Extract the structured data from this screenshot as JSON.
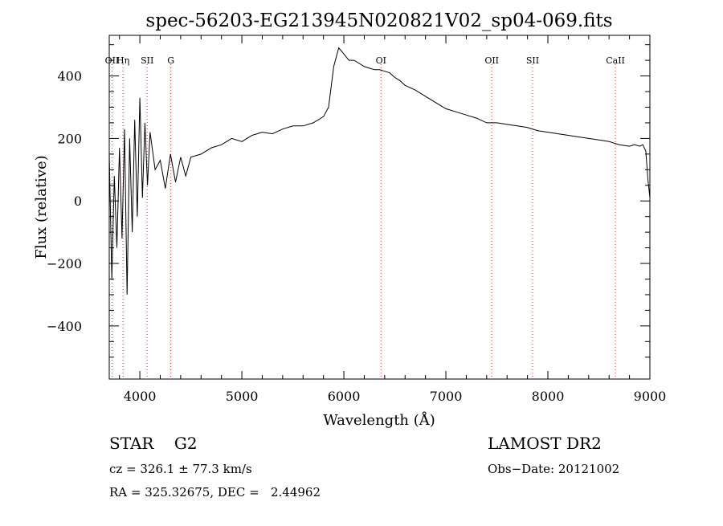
{
  "chart_data": {
    "type": "line",
    "title": "spec-56203-EG213945N020821V02_sp04-069.fits",
    "xlabel": "Wavelength (Å)",
    "ylabel": "Flux (relative)",
    "xlim": [
      3700,
      9000
    ],
    "ylim": [
      -570,
      530
    ],
    "xticks": [
      4000,
      5000,
      6000,
      7000,
      8000,
      9000
    ],
    "xtick_labels": [
      "4000",
      "5000",
      "6000",
      "7000",
      "8000",
      "9000"
    ],
    "yticks": [
      -400,
      -200,
      0,
      200,
      400
    ],
    "ytick_labels": [
      "−400",
      "−200",
      "0",
      "200",
      "400"
    ],
    "grid": false,
    "line_color": "#000000",
    "marker_color": "#cc3333",
    "line_markers": [
      {
        "label": "OII",
        "x": 3727
      },
      {
        "label": "Hη",
        "x": 3835
      },
      {
        "label": "SII",
        "x": 4072
      },
      {
        "label": "G",
        "x": 4304
      },
      {
        "label": "OI",
        "x": 6364
      },
      {
        "label": "OII",
        "x": 7450
      },
      {
        "label": "SII",
        "x": 7850
      },
      {
        "label": "CaII",
        "x": 8662
      }
    ],
    "series": [
      {
        "points": [
          [
            3700,
            150
          ],
          [
            3725,
            -250
          ],
          [
            3750,
            80
          ],
          [
            3775,
            -150
          ],
          [
            3800,
            170
          ],
          [
            3825,
            -120
          ],
          [
            3850,
            230
          ],
          [
            3875,
            -300
          ],
          [
            3900,
            200
          ],
          [
            3925,
            -100
          ],
          [
            3950,
            260
          ],
          [
            3975,
            -50
          ],
          [
            4000,
            330
          ],
          [
            4025,
            10
          ],
          [
            4050,
            250
          ],
          [
            4075,
            50
          ],
          [
            4100,
            220
          ],
          [
            4150,
            100
          ],
          [
            4200,
            130
          ],
          [
            4250,
            40
          ],
          [
            4300,
            150
          ],
          [
            4350,
            60
          ],
          [
            4400,
            140
          ],
          [
            4450,
            80
          ],
          [
            4500,
            140
          ],
          [
            4600,
            150
          ],
          [
            4700,
            170
          ],
          [
            4800,
            180
          ],
          [
            4900,
            200
          ],
          [
            5000,
            190
          ],
          [
            5100,
            210
          ],
          [
            5200,
            220
          ],
          [
            5300,
            215
          ],
          [
            5400,
            230
          ],
          [
            5500,
            240
          ],
          [
            5600,
            240
          ],
          [
            5700,
            250
          ],
          [
            5800,
            270
          ],
          [
            5850,
            300
          ],
          [
            5900,
            430
          ],
          [
            5950,
            490
          ],
          [
            6000,
            470
          ],
          [
            6050,
            450
          ],
          [
            6100,
            450
          ],
          [
            6150,
            440
          ],
          [
            6200,
            430
          ],
          [
            6250,
            425
          ],
          [
            6300,
            420
          ],
          [
            6350,
            420
          ],
          [
            6400,
            415
          ],
          [
            6450,
            410
          ],
          [
            6500,
            395
          ],
          [
            6550,
            385
          ],
          [
            6600,
            370
          ],
          [
            6700,
            355
          ],
          [
            6800,
            335
          ],
          [
            6900,
            315
          ],
          [
            7000,
            295
          ],
          [
            7100,
            285
          ],
          [
            7200,
            275
          ],
          [
            7300,
            265
          ],
          [
            7400,
            250
          ],
          [
            7500,
            250
          ],
          [
            7600,
            245
          ],
          [
            7700,
            240
          ],
          [
            7800,
            235
          ],
          [
            7900,
            225
          ],
          [
            8000,
            220
          ],
          [
            8100,
            215
          ],
          [
            8200,
            210
          ],
          [
            8300,
            205
          ],
          [
            8400,
            200
          ],
          [
            8500,
            195
          ],
          [
            8600,
            190
          ],
          [
            8700,
            180
          ],
          [
            8800,
            175
          ],
          [
            8850,
            180
          ],
          [
            8900,
            175
          ],
          [
            8930,
            180
          ],
          [
            8960,
            160
          ],
          [
            8980,
            70
          ],
          [
            9000,
            10
          ]
        ]
      }
    ]
  },
  "info": {
    "object": "STAR    G2",
    "survey": "LAMOST DR2",
    "cz": "cz = 326.1 ± 77.3 km/s",
    "obs_date": "Obs−Date: 20121002",
    "radec": "RA = 325.32675, DEC =   2.44962"
  }
}
